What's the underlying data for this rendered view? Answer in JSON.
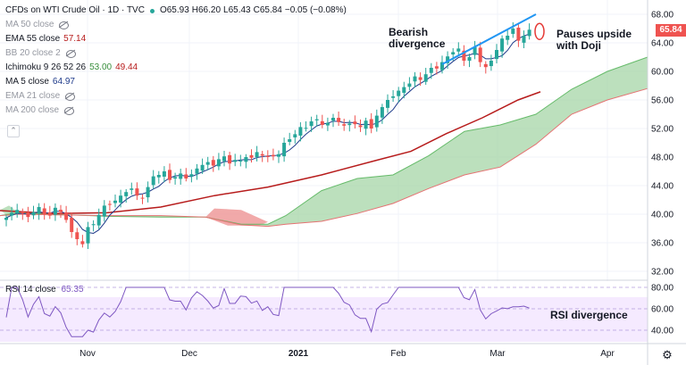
{
  "header": {
    "symbol": "CFDs on WTI Crude Oil · 1D · TVC",
    "ohlc": {
      "open": "O65.93",
      "high": "H66.20",
      "low": "L65.43",
      "close": "C65.84",
      "change": "−0.05 (−0.08%)"
    }
  },
  "indicators": [
    {
      "label": "MA 50 close",
      "value": "",
      "hidden": true,
      "color": "#9598a1"
    },
    {
      "label": "EMA 55 close",
      "value": "57.14",
      "hidden": false,
      "color": "#b71c1c"
    },
    {
      "label": "BB 20 close 2",
      "value": "",
      "hidden": true,
      "color": "#9598a1"
    },
    {
      "label": "Ichimoku 9 26 52 26",
      "value": "53.00",
      "value2": "49.44",
      "hidden": false,
      "color": "#388e3c",
      "color2": "#b71c1c"
    },
    {
      "label": "MA 5 close",
      "value": "64.97",
      "hidden": false,
      "color": "#1e3a8a"
    },
    {
      "label": "EMA 21 close",
      "value": "",
      "hidden": true,
      "color": "#9598a1"
    },
    {
      "label": "MA 200 close",
      "value": "",
      "hidden": true,
      "color": "#9598a1"
    }
  ],
  "rsi": {
    "label": "RSI 14 close",
    "value": "65.35",
    "levels": [
      40,
      60,
      80
    ],
    "axis_labels": [
      "80.00",
      "60.00",
      "40.00"
    ]
  },
  "price_axis": {
    "ticks": [
      "68.00",
      "64.00",
      "60.00",
      "56.00",
      "52.00",
      "48.00",
      "44.00",
      "40.00",
      "36.00",
      "32.00"
    ],
    "current_price": "65.84"
  },
  "time_axis": {
    "labels": [
      "Nov",
      "Dec",
      "2021",
      "Feb",
      "Mar",
      "Apr"
    ]
  },
  "annotations": {
    "bearish": [
      "Bearish",
      "divergence"
    ],
    "pauses": [
      "Pauses upside",
      "with Doji"
    ],
    "rsi_div": "RSI divergence"
  },
  "colors": {
    "up": "#26a69a",
    "down": "#ef5350",
    "ema55": "#b71c1c",
    "ma5": "#1e3a8a",
    "cloud_bull": "#a5d6a7",
    "cloud_bear": "#ef9a9a",
    "rsi": "#7e57c2",
    "annot_line": "#2196f3",
    "tag": "#ef5350"
  },
  "chart_data": {
    "type": "candlestick",
    "xlabel": "",
    "ylabel": "",
    "ylim": [
      32,
      70
    ],
    "series_note": "daily candles, WTI crude oil CFD, Oct 2020 – Mar 2021",
    "close_path": [
      39.5,
      40.2,
      40.6,
      40.1,
      39.6,
      40.3,
      41.0,
      40.0,
      39.8,
      40.9,
      40.3,
      39.2,
      37.5,
      36.5,
      35.8,
      38.2,
      38.6,
      39.9,
      41.2,
      41.4,
      41.9,
      42.6,
      43.1,
      43.6,
      42.6,
      42.3,
      43.8,
      45.3,
      45.5,
      46.0,
      44.8,
      45.2,
      45.7,
      45.0,
      45.6,
      46.4,
      46.9,
      47.3,
      46.8,
      47.7,
      48.1,
      47.1,
      47.6,
      47.5,
      48.0,
      47.9,
      48.7,
      48.2,
      48.0,
      48.1,
      48.4,
      50.0,
      50.5,
      51.2,
      52.2,
      52.1,
      53.0,
      53.3,
      52.5,
      52.8,
      53.5,
      52.9,
      52.4,
      52.7,
      52.6,
      52.2,
      53.1,
      52.0,
      53.8,
      55.0,
      56.0,
      56.5,
      57.3,
      57.8,
      58.3,
      59.3,
      58.8,
      59.6,
      60.5,
      60.4,
      61.3,
      62.1,
      62.7,
      63.2,
      61.5,
      62.0,
      63.4,
      61.3,
      60.6,
      61.5,
      63.0,
      64.6,
      65.0,
      66.0,
      64.3,
      65.0,
      65.84
    ],
    "ma5_last": 64.97,
    "ema55_last": 57.14,
    "ichimoku": {
      "conversion": 53.0,
      "base": 49.44
    },
    "rsi_last": 65.35
  }
}
